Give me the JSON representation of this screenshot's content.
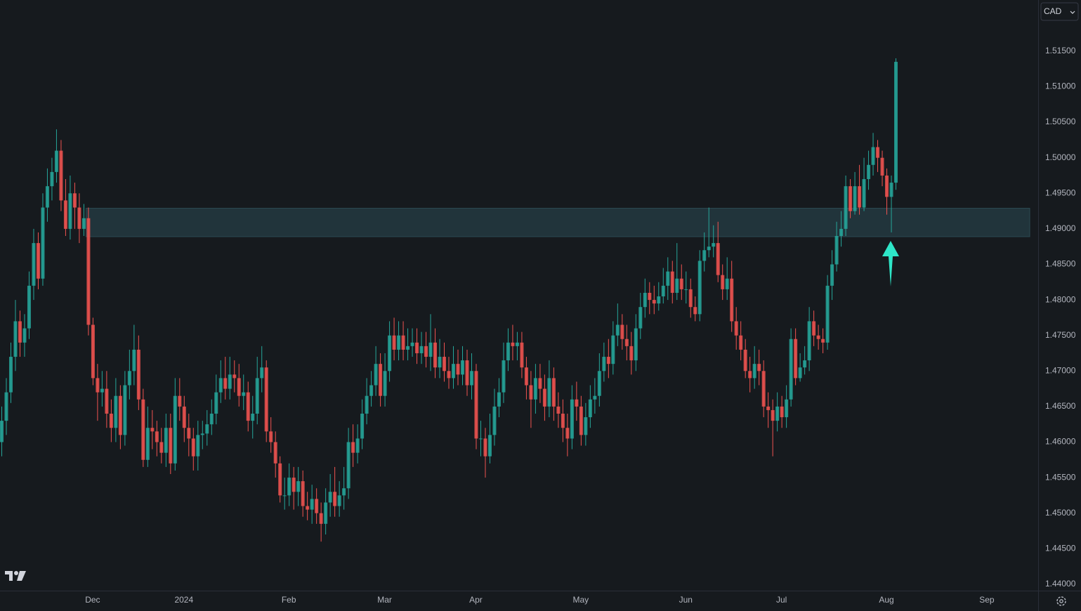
{
  "currency": "CAD",
  "chart_data": {
    "type": "candlestick",
    "colors": {
      "up": "#26a69a",
      "down": "#ef5350"
    },
    "ylim": [
      1.4391,
      1.5222
    ],
    "yticks": [
      {
        "value": 1.515,
        "label": "1.51500"
      },
      {
        "value": 1.51,
        "label": "1.51000"
      },
      {
        "value": 1.505,
        "label": "1.50500"
      },
      {
        "value": 1.5,
        "label": "1.50000"
      },
      {
        "value": 1.495,
        "label": "1.49500"
      },
      {
        "value": 1.49,
        "label": "1.49000"
      },
      {
        "value": 1.485,
        "label": "1.48500"
      },
      {
        "value": 1.48,
        "label": "1.48000"
      },
      {
        "value": 1.475,
        "label": "1.47500"
      },
      {
        "value": 1.47,
        "label": "1.47000"
      },
      {
        "value": 1.465,
        "label": "1.46500"
      },
      {
        "value": 1.46,
        "label": "1.46000"
      },
      {
        "value": 1.455,
        "label": "1.45500"
      },
      {
        "value": 1.45,
        "label": "1.45000"
      },
      {
        "value": 1.445,
        "label": "1.44500"
      },
      {
        "value": 1.44,
        "label": "1.44000"
      }
    ],
    "grid": false,
    "zone": {
      "low": 1.4889,
      "high": 1.4929
    },
    "categories": [
      null,
      null,
      null,
      null,
      null,
      null,
      null,
      null,
      null,
      null,
      null,
      null,
      null,
      null,
      null,
      null,
      null,
      null,
      null,
      null,
      "Dec",
      null,
      null,
      null,
      null,
      null,
      null,
      null,
      null,
      null,
      null,
      null,
      null,
      null,
      null,
      null,
      null,
      null,
      null,
      null,
      "2024",
      null,
      null,
      null,
      null,
      null,
      null,
      null,
      null,
      null,
      null,
      null,
      null,
      null,
      null,
      null,
      null,
      null,
      null,
      null,
      null,
      null,
      null,
      "Feb",
      null,
      null,
      null,
      null,
      null,
      null,
      null,
      null,
      null,
      null,
      null,
      null,
      null,
      null,
      null,
      null,
      null,
      null,
      null,
      null,
      "Mar",
      null,
      null,
      null,
      null,
      null,
      null,
      null,
      null,
      null,
      null,
      null,
      null,
      null,
      null,
      null,
      null,
      null,
      null,
      null,
      "Apr",
      null,
      null,
      null,
      null,
      null,
      null,
      null,
      null,
      null,
      null,
      null,
      null,
      null,
      null,
      null,
      null,
      null,
      null,
      null,
      null,
      null,
      null,
      "May",
      null,
      null,
      null,
      null,
      null,
      null,
      null,
      null,
      null,
      null,
      null,
      null,
      null,
      null,
      null,
      null,
      null,
      null,
      null,
      null,
      null,
      null,
      "Jun",
      null,
      null,
      null,
      null,
      null,
      null,
      null,
      null,
      null,
      null,
      null,
      null,
      null,
      null,
      null,
      null,
      null,
      null,
      null,
      null,
      "Jul",
      null,
      null,
      null,
      null,
      null,
      null,
      null,
      null,
      null,
      null,
      null,
      null,
      null,
      null,
      null,
      null,
      null,
      null,
      null,
      null,
      null,
      null,
      "Aug",
      null,
      null,
      null,
      null,
      null,
      null,
      null,
      null,
      null,
      null,
      null,
      null,
      null,
      null,
      null,
      null,
      null,
      null,
      null,
      null,
      null,
      "Sep",
      null,
      null,
      null,
      null,
      null,
      null,
      null,
      null,
      null,
      null
    ],
    "candles": [
      [
        1.46,
        1.465,
        1.458,
        1.463
      ],
      [
        1.463,
        1.469,
        1.461,
        1.467
      ],
      [
        1.467,
        1.474,
        1.4655,
        1.472
      ],
      [
        1.472,
        1.48,
        1.47,
        1.477
      ],
      [
        1.477,
        1.4785,
        1.472,
        1.474
      ],
      [
        1.474,
        1.478,
        1.472,
        1.476
      ],
      [
        1.476,
        1.484,
        1.4745,
        1.482
      ],
      [
        1.482,
        1.49,
        1.48,
        1.488
      ],
      [
        1.488,
        1.4895,
        1.4815,
        1.483
      ],
      [
        1.483,
        1.495,
        1.482,
        1.493
      ],
      [
        1.493,
        1.4985,
        1.491,
        1.496
      ],
      [
        1.496,
        1.5,
        1.494,
        1.498
      ],
      [
        1.498,
        1.504,
        1.4965,
        1.501
      ],
      [
        1.501,
        1.5025,
        1.4925,
        1.494
      ],
      [
        1.494,
        1.497,
        1.489,
        1.49
      ],
      [
        1.49,
        1.4975,
        1.4885,
        1.495
      ],
      [
        1.495,
        1.4965,
        1.49,
        1.493
      ],
      [
        1.493,
        1.495,
        1.488,
        1.49
      ],
      [
        1.49,
        1.4935,
        1.489,
        1.4915
      ],
      [
        1.4915,
        1.493,
        1.475,
        1.4765
      ],
      [
        1.4765,
        1.4775,
        1.468,
        1.469
      ],
      [
        1.469,
        1.471,
        1.463,
        1.467
      ],
      [
        1.467,
        1.47,
        1.465,
        1.4675
      ],
      [
        1.4675,
        1.47,
        1.462,
        1.464
      ],
      [
        1.464,
        1.466,
        1.46,
        1.462
      ],
      [
        1.462,
        1.469,
        1.46,
        1.4665
      ],
      [
        1.4665,
        1.468,
        1.459,
        1.461
      ],
      [
        1.461,
        1.47,
        1.4595,
        1.468
      ],
      [
        1.468,
        1.473,
        1.466,
        1.47
      ],
      [
        1.47,
        1.4765,
        1.468,
        1.473
      ],
      [
        1.473,
        1.475,
        1.4645,
        1.466
      ],
      [
        1.466,
        1.4675,
        1.4565,
        1.4575
      ],
      [
        1.4575,
        1.465,
        1.4565,
        1.462
      ],
      [
        1.462,
        1.4645,
        1.459,
        1.4615
      ],
      [
        1.4615,
        1.463,
        1.458,
        1.46
      ],
      [
        1.46,
        1.462,
        1.457,
        1.4585
      ],
      [
        1.4585,
        1.464,
        1.4565,
        1.462
      ],
      [
        1.462,
        1.464,
        1.4555,
        1.457
      ],
      [
        1.457,
        1.469,
        1.456,
        1.4665
      ],
      [
        1.4665,
        1.469,
        1.463,
        1.465
      ],
      [
        1.465,
        1.4665,
        1.46,
        1.462
      ],
      [
        1.462,
        1.464,
        1.458,
        1.4605
      ],
      [
        1.4605,
        1.462,
        1.456,
        1.458
      ],
      [
        1.458,
        1.463,
        1.456,
        1.461
      ],
      [
        1.461,
        1.463,
        1.459,
        1.4612
      ],
      [
        1.4612,
        1.4645,
        1.4595,
        1.4625
      ],
      [
        1.4625,
        1.466,
        1.461,
        1.464
      ],
      [
        1.464,
        1.4695,
        1.4625,
        1.467
      ],
      [
        1.467,
        1.4715,
        1.4655,
        1.469
      ],
      [
        1.469,
        1.472,
        1.466,
        1.4675
      ],
      [
        1.4675,
        1.472,
        1.466,
        1.4695
      ],
      [
        1.4695,
        1.4715,
        1.467,
        1.469
      ],
      [
        1.469,
        1.471,
        1.465,
        1.4665
      ],
      [
        1.4665,
        1.4695,
        1.4645,
        1.467
      ],
      [
        1.467,
        1.4685,
        1.4615,
        1.463
      ],
      [
        1.463,
        1.4665,
        1.4605,
        1.464
      ],
      [
        1.464,
        1.472,
        1.4625,
        1.469
      ],
      [
        1.469,
        1.4735,
        1.467,
        1.4705
      ],
      [
        1.4705,
        1.4715,
        1.46,
        1.4615
      ],
      [
        1.4615,
        1.4635,
        1.4585,
        1.46
      ],
      [
        1.46,
        1.4615,
        1.455,
        1.457
      ],
      [
        1.457,
        1.458,
        1.4515,
        1.4525
      ],
      [
        1.4525,
        1.455,
        1.4505,
        1.4525
      ],
      [
        1.4525,
        1.457,
        1.451,
        1.455
      ],
      [
        1.455,
        1.4565,
        1.4505,
        1.453
      ],
      [
        1.453,
        1.4565,
        1.451,
        1.4545
      ],
      [
        1.4545,
        1.456,
        1.4495,
        1.451
      ],
      [
        1.451,
        1.453,
        1.449,
        1.4505
      ],
      [
        1.4505,
        1.454,
        1.4485,
        1.452
      ],
      [
        1.452,
        1.4535,
        1.4485,
        1.45
      ],
      [
        1.45,
        1.4515,
        1.446,
        1.4485
      ],
      [
        1.4485,
        1.4535,
        1.447,
        1.4515
      ],
      [
        1.4515,
        1.4555,
        1.4495,
        1.453
      ],
      [
        1.453,
        1.4565,
        1.4495,
        1.451
      ],
      [
        1.451,
        1.4545,
        1.4495,
        1.4525
      ],
      [
        1.4525,
        1.4565,
        1.4505,
        1.4535
      ],
      [
        1.4535,
        1.462,
        1.452,
        1.46
      ],
      [
        1.46,
        1.4625,
        1.4565,
        1.4585
      ],
      [
        1.4585,
        1.4625,
        1.457,
        1.4605
      ],
      [
        1.4605,
        1.466,
        1.459,
        1.464
      ],
      [
        1.464,
        1.469,
        1.4625,
        1.4665
      ],
      [
        1.4665,
        1.47,
        1.465,
        1.468
      ],
      [
        1.468,
        1.4735,
        1.4665,
        1.471
      ],
      [
        1.471,
        1.4725,
        1.465,
        1.4665
      ],
      [
        1.4665,
        1.4725,
        1.465,
        1.47
      ],
      [
        1.47,
        1.477,
        1.4685,
        1.475
      ],
      [
        1.475,
        1.4775,
        1.4715,
        1.473
      ],
      [
        1.473,
        1.477,
        1.4715,
        1.475
      ],
      [
        1.475,
        1.477,
        1.4715,
        1.473
      ],
      [
        1.473,
        1.476,
        1.4715,
        1.4735
      ],
      [
        1.4735,
        1.476,
        1.472,
        1.474
      ],
      [
        1.474,
        1.476,
        1.471,
        1.4725
      ],
      [
        1.4725,
        1.4755,
        1.471,
        1.4735
      ],
      [
        1.4735,
        1.4755,
        1.4705,
        1.472
      ],
      [
        1.472,
        1.478,
        1.47,
        1.474
      ],
      [
        1.474,
        1.476,
        1.469,
        1.4705
      ],
      [
        1.4705,
        1.4745,
        1.469,
        1.472
      ],
      [
        1.472,
        1.474,
        1.4685,
        1.47
      ],
      [
        1.47,
        1.472,
        1.4675,
        1.469
      ],
      [
        1.469,
        1.4735,
        1.4675,
        1.471
      ],
      [
        1.471,
        1.473,
        1.468,
        1.4695
      ],
      [
        1.4695,
        1.4735,
        1.468,
        1.4715
      ],
      [
        1.4715,
        1.473,
        1.4665,
        1.468
      ],
      [
        1.468,
        1.4725,
        1.466,
        1.47
      ],
      [
        1.47,
        1.471,
        1.459,
        1.4605
      ],
      [
        1.4605,
        1.463,
        1.458,
        1.4605
      ],
      [
        1.4605,
        1.462,
        1.455,
        1.458
      ],
      [
        1.458,
        1.464,
        1.457,
        1.461
      ],
      [
        1.461,
        1.4675,
        1.4595,
        1.465
      ],
      [
        1.465,
        1.469,
        1.4635,
        1.467
      ],
      [
        1.467,
        1.474,
        1.4655,
        1.4715
      ],
      [
        1.4715,
        1.476,
        1.47,
        1.474
      ],
      [
        1.474,
        1.4765,
        1.4715,
        1.4735
      ],
      [
        1.4735,
        1.4755,
        1.4715,
        1.474
      ],
      [
        1.474,
        1.4755,
        1.469,
        1.4705
      ],
      [
        1.4705,
        1.472,
        1.466,
        1.468
      ],
      [
        1.468,
        1.47,
        1.462,
        1.466
      ],
      [
        1.466,
        1.471,
        1.464,
        1.469
      ],
      [
        1.469,
        1.471,
        1.4655,
        1.4675
      ],
      [
        1.4675,
        1.4695,
        1.463,
        1.465
      ],
      [
        1.465,
        1.4715,
        1.4635,
        1.469
      ],
      [
        1.469,
        1.4705,
        1.463,
        1.465
      ],
      [
        1.465,
        1.467,
        1.462,
        1.464
      ],
      [
        1.464,
        1.466,
        1.46,
        1.462
      ],
      [
        1.462,
        1.464,
        1.458,
        1.4605
      ],
      [
        1.4605,
        1.468,
        1.459,
        1.466
      ],
      [
        1.466,
        1.4685,
        1.463,
        1.465
      ],
      [
        1.465,
        1.4665,
        1.4595,
        1.461
      ],
      [
        1.461,
        1.4655,
        1.4595,
        1.4635
      ],
      [
        1.4635,
        1.468,
        1.462,
        1.466
      ],
      [
        1.466,
        1.469,
        1.464,
        1.4665
      ],
      [
        1.4665,
        1.4725,
        1.465,
        1.47
      ],
      [
        1.47,
        1.474,
        1.4685,
        1.472
      ],
      [
        1.472,
        1.4745,
        1.469,
        1.471
      ],
      [
        1.471,
        1.477,
        1.4695,
        1.475
      ],
      [
        1.475,
        1.4795,
        1.4735,
        1.4765
      ],
      [
        1.4765,
        1.478,
        1.473,
        1.4745
      ],
      [
        1.4745,
        1.4765,
        1.4715,
        1.4735
      ],
      [
        1.4735,
        1.4755,
        1.4695,
        1.4715
      ],
      [
        1.4715,
        1.478,
        1.47,
        1.476
      ],
      [
        1.476,
        1.481,
        1.4745,
        1.479
      ],
      [
        1.479,
        1.483,
        1.4775,
        1.481
      ],
      [
        1.481,
        1.4825,
        1.478,
        1.48
      ],
      [
        1.48,
        1.482,
        1.478,
        1.4795
      ],
      [
        1.4795,
        1.4825,
        1.4785,
        1.4805
      ],
      [
        1.4805,
        1.4845,
        1.4795,
        1.482
      ],
      [
        1.482,
        1.486,
        1.48,
        1.484
      ],
      [
        1.484,
        1.4855,
        1.4795,
        1.481
      ],
      [
        1.481,
        1.488,
        1.48,
        1.483
      ],
      [
        1.483,
        1.485,
        1.48,
        1.4815
      ],
      [
        1.4815,
        1.484,
        1.4795,
        1.4815
      ],
      [
        1.4815,
        1.483,
        1.4775,
        1.479
      ],
      [
        1.479,
        1.4805,
        1.477,
        1.478
      ],
      [
        1.478,
        1.487,
        1.477,
        1.4855
      ],
      [
        1.4855,
        1.4895,
        1.484,
        1.487
      ],
      [
        1.487,
        1.493,
        1.486,
        1.4875
      ],
      [
        1.4875,
        1.4905,
        1.486,
        1.488
      ],
      [
        1.488,
        1.491,
        1.4825,
        1.4835
      ],
      [
        1.4835,
        1.485,
        1.48,
        1.4815
      ],
      [
        1.4815,
        1.486,
        1.48,
        1.483
      ],
      [
        1.483,
        1.4855,
        1.4755,
        1.477
      ],
      [
        1.477,
        1.479,
        1.473,
        1.475
      ],
      [
        1.475,
        1.477,
        1.4715,
        1.473
      ],
      [
        1.473,
        1.4745,
        1.469,
        1.47
      ],
      [
        1.47,
        1.472,
        1.467,
        1.469
      ],
      [
        1.469,
        1.4735,
        1.4675,
        1.471
      ],
      [
        1.471,
        1.473,
        1.468,
        1.47
      ],
      [
        1.47,
        1.4715,
        1.4635,
        1.465
      ],
      [
        1.465,
        1.467,
        1.462,
        1.4645
      ],
      [
        1.4645,
        1.466,
        1.458,
        1.463
      ],
      [
        1.463,
        1.467,
        1.4615,
        1.465
      ],
      [
        1.465,
        1.4665,
        1.462,
        1.4635
      ],
      [
        1.4635,
        1.468,
        1.462,
        1.466
      ],
      [
        1.466,
        1.476,
        1.465,
        1.4745
      ],
      [
        1.4745,
        1.476,
        1.468,
        1.469
      ],
      [
        1.469,
        1.4725,
        1.4685,
        1.4705
      ],
      [
        1.4705,
        1.4735,
        1.4695,
        1.4715
      ],
      [
        1.4715,
        1.479,
        1.47,
        1.477
      ],
      [
        1.477,
        1.4785,
        1.4735,
        1.475
      ],
      [
        1.475,
        1.4765,
        1.473,
        1.4745
      ],
      [
        1.4745,
        1.476,
        1.4725,
        1.474
      ],
      [
        1.474,
        1.4835,
        1.473,
        1.482
      ],
      [
        1.482,
        1.487,
        1.48,
        1.485
      ],
      [
        1.485,
        1.491,
        1.484,
        1.489
      ],
      [
        1.489,
        1.4925,
        1.4875,
        1.49
      ],
      [
        1.49,
        1.4975,
        1.489,
        1.496
      ],
      [
        1.496,
        1.497,
        1.4915,
        1.4925
      ],
      [
        1.4925,
        1.498,
        1.492,
        1.496
      ],
      [
        1.496,
        1.499,
        1.492,
        1.493
      ],
      [
        1.493,
        1.5,
        1.4925,
        1.497
      ],
      [
        1.497,
        1.501,
        1.4955,
        1.499
      ],
      [
        1.499,
        1.5035,
        1.4975,
        1.5015
      ],
      [
        1.5015,
        1.5025,
        1.498,
        1.5
      ],
      [
        1.5,
        1.501,
        1.496,
        1.4975
      ],
      [
        1.4975,
        1.4985,
        1.492,
        1.4945
      ],
      [
        1.4945,
        1.4975,
        1.4895,
        1.4965
      ],
      [
        1.4965,
        1.514,
        1.4955,
        1.5135
      ],
      null,
      null,
      null,
      null,
      null,
      null,
      null,
      null,
      null,
      null,
      null,
      null,
      null,
      null,
      null,
      null,
      null,
      null,
      null,
      null,
      null,
      null,
      null,
      null,
      null,
      null,
      null,
      null,
      null,
      null,
      null
    ]
  }
}
